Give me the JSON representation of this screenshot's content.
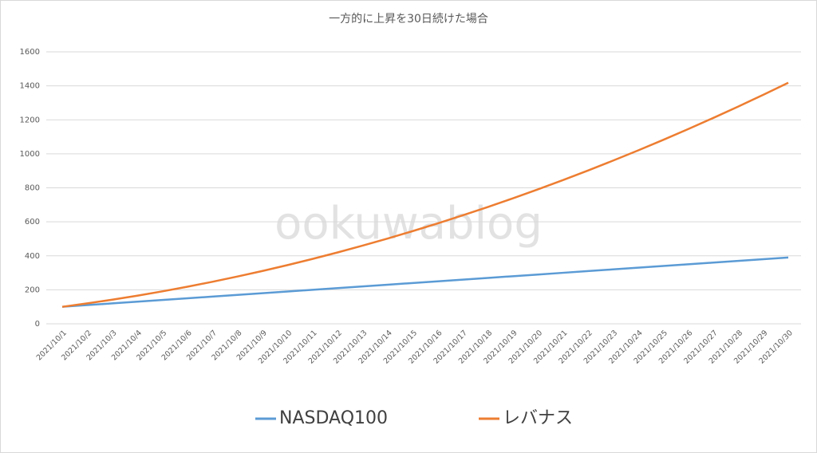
{
  "chart_data": {
    "type": "line",
    "title": "一方的に上昇を30日続けた場合",
    "watermark": "ookuwablog",
    "categories": [
      "2021/10/1",
      "2021/10/2",
      "2021/10/3",
      "2021/10/4",
      "2021/10/5",
      "2021/10/6",
      "2021/10/7",
      "2021/10/8",
      "2021/10/9",
      "2021/10/10",
      "2021/10/11",
      "2021/10/12",
      "2021/10/13",
      "2021/10/14",
      "2021/10/15",
      "2021/10/16",
      "2021/10/17",
      "2021/10/18",
      "2021/10/19",
      "2021/10/20",
      "2021/10/21",
      "2021/10/22",
      "2021/10/23",
      "2021/10/24",
      "2021/10/25",
      "2021/10/26",
      "2021/10/27",
      "2021/10/28",
      "2021/10/29",
      "2021/10/30"
    ],
    "series": [
      {
        "name": "NASDAQ100",
        "color": "#5b9bd5",
        "values": [
          100,
          110,
          120,
          130,
          140,
          150,
          160,
          170,
          180,
          190,
          200,
          210,
          220,
          230,
          240,
          250,
          260,
          270,
          280,
          290,
          300,
          310,
          320,
          330,
          340,
          350,
          360,
          370,
          380,
          390
        ]
      },
      {
        "name": "レバナス",
        "color": "#ed7d31",
        "values": [
          100,
          120,
          141.8,
          165.5,
          190.9,
          218.2,
          247.3,
          278.2,
          310.9,
          345.5,
          381.8,
          420,
          460,
          501.8,
          545.5,
          590.9,
          638.2,
          687.3,
          738.2,
          790.9,
          845.5,
          901.8,
          960,
          1020,
          1081.8,
          1145.5,
          1210.9,
          1278.2,
          1347.3,
          1418.2
        ]
      }
    ],
    "ylim": [
      0,
      1600
    ],
    "yticks": [
      0,
      200,
      400,
      600,
      800,
      1000,
      1200,
      1400,
      1600
    ],
    "grid": true,
    "legend": "bottom"
  }
}
